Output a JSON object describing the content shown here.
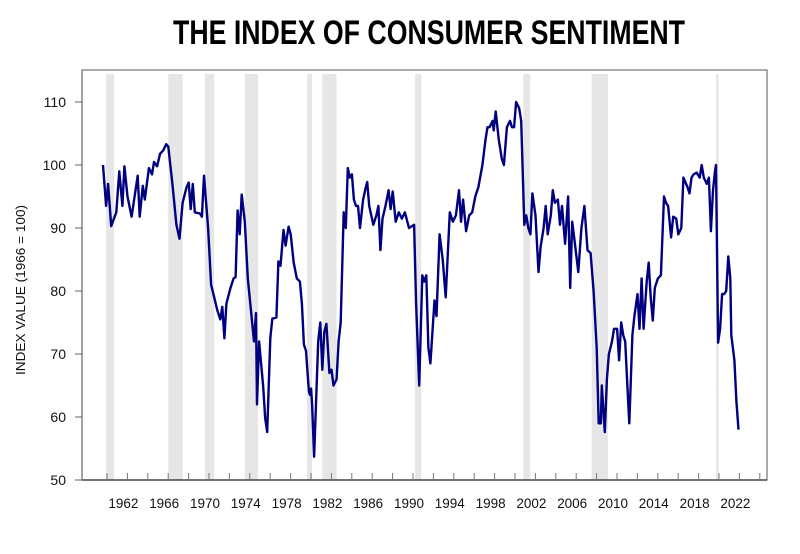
{
  "chart_data": {
    "type": "line",
    "title": "THE INDEX OF CONSUMER SENTIMENT",
    "xlabel": "",
    "ylabel": "INDEX VALUE (1966 = 100)",
    "xlim": [
      1959.3,
      2024.3
    ],
    "ylim": [
      50,
      110
    ],
    "yticks": [
      50,
      60,
      70,
      80,
      90,
      100,
      110
    ],
    "xticks": [
      1962,
      1966,
      1970,
      1974,
      1978,
      1982,
      1986,
      1990,
      1994,
      1998,
      2002,
      2006,
      2010,
      2014,
      2018,
      2022
    ],
    "grid": false,
    "legend": "none",
    "colors": {
      "line": "#000080",
      "recession": "#e6e6e6"
    },
    "recession_shading": [
      [
        1960.3,
        1961.1
      ],
      [
        1966.4,
        1967.8
      ],
      [
        1970.0,
        1970.9
      ],
      [
        1973.9,
        1975.2
      ],
      [
        1980.0,
        1980.5
      ],
      [
        1981.5,
        1982.9
      ],
      [
        1990.6,
        1991.2
      ],
      [
        2001.2,
        2001.9
      ],
      [
        2007.9,
        2009.5
      ],
      [
        2020.1,
        2020.3
      ]
    ],
    "series": [
      {
        "x": [
          1960.0,
          1960.3,
          1960.5,
          1960.8,
          1961.3,
          1961.6,
          1961.9,
          1962.1,
          1962.4,
          1962.8,
          1963.1,
          1963.4,
          1963.6,
          1963.9,
          1964.1,
          1964.5,
          1964.8,
          1965.0,
          1965.3,
          1965.6,
          1965.9,
          1966.2,
          1966.4,
          1966.8,
          1967.2,
          1967.5,
          1967.8,
          1968.2,
          1968.4,
          1968.6,
          1968.8,
          1969.0,
          1969.5,
          1969.7,
          1969.9,
          1970.3,
          1970.6,
          1970.9,
          1971.2,
          1971.5,
          1971.7,
          1971.9,
          1972.1,
          1972.5,
          1972.8,
          1973.0,
          1973.2,
          1973.4,
          1973.6,
          1973.9,
          1974.2,
          1974.5,
          1974.8,
          1975.0,
          1975.1,
          1975.3,
          1975.7,
          1975.9,
          1976.1,
          1976.4,
          1976.6,
          1977.0,
          1977.2,
          1977.4,
          1977.7,
          1977.9,
          1978.2,
          1978.4,
          1978.7,
          1979.0,
          1979.3,
          1979.5,
          1979.7,
          1979.9,
          1980.1,
          1980.2,
          1980.3,
          1980.4,
          1980.5,
          1980.7,
          1980.9,
          1981.1,
          1981.3,
          1981.5,
          1981.7,
          1981.9,
          1982.2,
          1982.4,
          1982.6,
          1982.9,
          1983.1,
          1983.3,
          1983.6,
          1983.8,
          1984.0,
          1984.2,
          1984.4,
          1984.6,
          1984.8,
          1985.0,
          1985.2,
          1985.5,
          1985.7,
          1985.9,
          1986.1,
          1986.5,
          1986.8,
          1987.0,
          1987.2,
          1987.4,
          1987.7,
          1988.0,
          1988.2,
          1988.4,
          1988.7,
          1989.0,
          1989.3,
          1989.6,
          1990.0,
          1990.5,
          1990.7,
          1991.0,
          1991.3,
          1991.5,
          1991.7,
          1991.9,
          1992.1,
          1992.5,
          1992.7,
          1993.0,
          1993.3,
          1993.6,
          1994.0,
          1994.3,
          1994.6,
          1994.9,
          1995.1,
          1995.3,
          1995.6,
          1995.9,
          1996.2,
          1996.5,
          1996.8,
          1997.2,
          1997.5,
          1997.7,
          1997.9,
          1998.2,
          1998.3,
          1998.5,
          1998.8,
          1999.1,
          1999.3,
          1999.6,
          1999.9,
          2000.1,
          2000.3,
          2000.5,
          2000.8,
          2001.0,
          2001.3,
          2001.5,
          2001.7,
          2001.9,
          2002.1,
          2002.4,
          2002.7,
          2002.9,
          2003.2,
          2003.4,
          2003.6,
          2003.9,
          2004.1,
          2004.3,
          2004.6,
          2004.8,
          2005.0,
          2005.3,
          2005.6,
          2005.8,
          2006.0,
          2006.3,
          2006.6,
          2006.9,
          2007.2,
          2007.5,
          2007.8,
          2008.1,
          2008.4,
          2008.6,
          2008.8,
          2008.9,
          2009.1,
          2009.2,
          2009.4,
          2009.6,
          2009.9,
          2010.1,
          2010.4,
          2010.6,
          2010.8,
          2011.0,
          2011.2,
          2011.5,
          2011.6,
          2011.9,
          2012.1,
          2012.4,
          2012.6,
          2012.8,
          2013.0,
          2013.3,
          2013.5,
          2013.7,
          2013.9,
          2014.1,
          2014.4,
          2014.7,
          2015.0,
          2015.2,
          2015.4,
          2015.7,
          2015.9,
          2016.2,
          2016.4,
          2016.7,
          2016.9,
          2017.3,
          2017.5,
          2017.7,
          2017.9,
          2018.2,
          2018.5,
          2018.7,
          2018.9,
          2019.2,
          2019.4,
          2019.6,
          2019.8,
          2020.0,
          2020.1,
          2020.3,
          2020.5,
          2020.7,
          2020.9,
          2021.1,
          2021.3,
          2021.5,
          2021.6,
          2021.9,
          2022.1,
          2022.3
        ],
        "values": [
          100,
          93.5,
          97,
          90.3,
          92.5,
          99,
          93.5,
          99.8,
          95,
          91.8,
          95,
          98.3,
          91.8,
          96.7,
          94.5,
          99.5,
          98.5,
          100.5,
          99.8,
          101.8,
          102.3,
          103.3,
          102.9,
          97,
          90.5,
          88.3,
          94,
          96.5,
          97.2,
          93,
          97,
          92.5,
          92.3,
          91.8,
          98.3,
          90,
          81,
          79,
          77,
          75.5,
          77.5,
          72.5,
          78,
          80.5,
          82,
          82.2,
          92.8,
          89,
          95.3,
          91,
          82,
          77,
          72,
          76.5,
          62,
          72,
          65,
          59.8,
          57.6,
          72.5,
          75.6,
          75.8,
          84.7,
          84,
          89.7,
          87.2,
          90.2,
          89,
          84.5,
          82,
          81.5,
          78,
          71.5,
          70.5,
          66,
          64,
          63.5,
          64.5,
          62,
          53.7,
          63,
          72,
          75,
          67.5,
          73.5,
          74.8,
          67,
          67.5,
          65,
          66,
          72,
          75,
          92.5,
          90,
          99.5,
          98,
          98.5,
          94.5,
          93.5,
          93.5,
          90,
          94.5,
          96,
          97.3,
          93.5,
          90.5,
          92,
          93.5,
          86.5,
          91.5,
          93.5,
          96,
          93,
          95.8,
          91,
          92.5,
          91.5,
          92.5,
          90,
          90.5,
          78,
          65,
          82.5,
          81.5,
          82.5,
          71,
          68.5,
          78.5,
          76,
          89,
          85,
          79,
          92.5,
          91,
          92,
          96,
          91,
          94.5,
          89.5,
          92,
          92.5,
          95,
          96.5,
          100,
          104,
          106,
          106,
          107,
          105.5,
          108.5,
          104,
          101,
          100,
          106,
          107,
          106,
          106,
          110,
          109,
          107,
          90.5,
          92,
          90,
          89,
          95.5,
          92,
          83,
          87,
          90,
          93.5,
          89,
          92,
          96,
          94,
          94.5,
          90.5,
          93.5,
          87.5,
          95,
          80.5,
          91,
          87,
          83,
          90,
          93.5,
          86.5,
          86,
          80,
          71,
          59,
          59,
          65,
          60,
          57.6,
          66,
          70,
          72,
          74,
          74,
          69,
          75,
          73,
          72,
          62,
          59,
          73,
          76,
          79.5,
          74,
          82,
          74,
          81.5,
          84.5,
          79,
          75.3,
          80.5,
          82,
          82.5,
          95,
          94,
          93.5,
          88.5,
          91.8,
          91.5,
          89,
          90,
          98,
          96.5,
          95.5,
          98,
          98.5,
          98.8,
          98,
          100,
          98,
          97,
          98,
          89.5,
          96,
          99,
          100,
          71.8,
          74,
          79.5,
          79.5,
          80,
          85.5,
          82,
          73,
          69,
          62.5,
          58
        ]
      }
    ]
  }
}
